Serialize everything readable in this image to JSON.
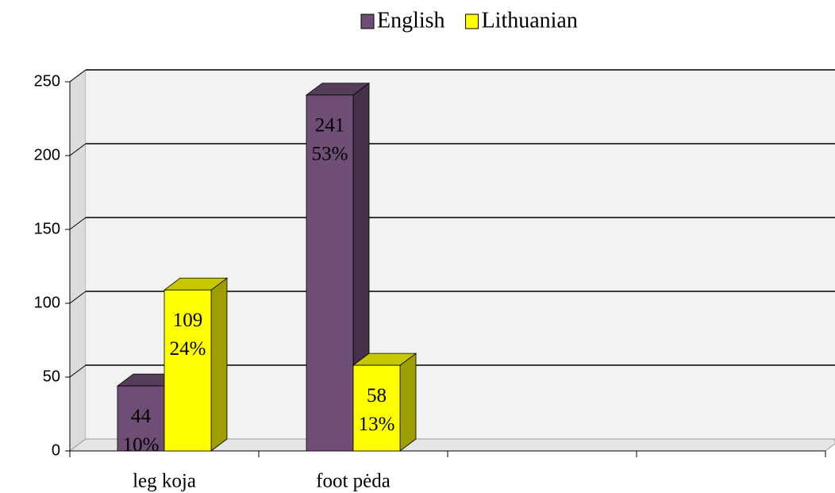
{
  "chart_data": {
    "type": "bar3d",
    "categories": [
      "leg koja",
      "foot pėda",
      null,
      null
    ],
    "series": [
      {
        "name": "English",
        "color": "#6e4e75",
        "values": [
          44,
          241,
          null,
          null
        ],
        "value_labels": [
          [
            "44",
            "10%"
          ],
          [
            "241",
            "53%"
          ],
          null,
          null
        ]
      },
      {
        "name": "Lithuanian",
        "color": "#ffff00",
        "values": [
          109,
          58,
          null,
          null
        ],
        "value_labels": [
          [
            "109",
            "24%"
          ],
          [
            "58",
            "13%"
          ],
          null,
          null
        ]
      }
    ],
    "ylim": [
      0,
      250
    ],
    "yticks": [
      0,
      50,
      100,
      150,
      200,
      250
    ],
    "grid": true,
    "legend": "top"
  }
}
